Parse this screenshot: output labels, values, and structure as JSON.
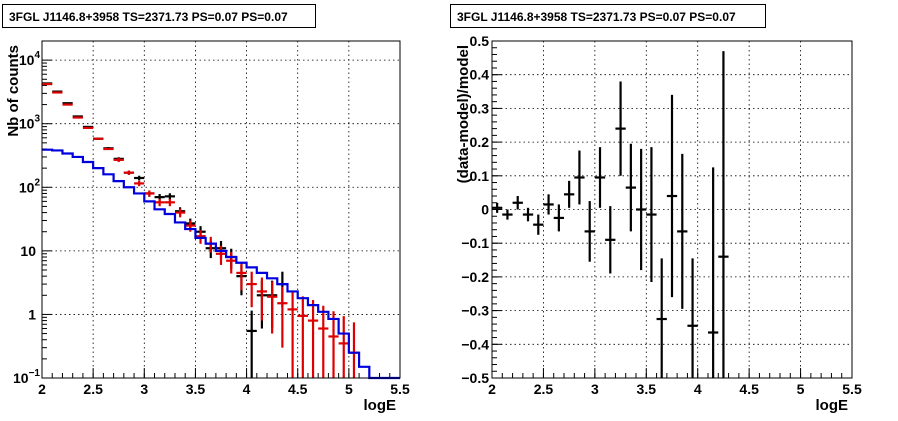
{
  "panels": [
    {
      "title": "3FGL J1146.8+3958 TS=2371.73 PS=0.07 PS=0.07"
    },
    {
      "title": "3FGL J1146.8+3958 TS=2371.73 PS=0.07 PS=0.07"
    }
  ],
  "colors": {
    "data": "#000000",
    "model_points": "#dd0000",
    "model_line": "#0000dd"
  },
  "chart_data": [
    {
      "type": "line",
      "xlabel": "logE",
      "ylabel": "Nb of counts",
      "xlim": [
        2,
        5.5
      ],
      "ylim": [
        0.1,
        20000
      ],
      "yscale": "log",
      "grid": true,
      "xticks": [
        "2",
        "2.5",
        "3",
        "3.5",
        "4",
        "4.5",
        "5",
        "5.5"
      ],
      "yticks": [
        {
          "value": 0.1,
          "base": "10",
          "exp": "−1"
        },
        {
          "value": 1,
          "base": "1",
          "exp": ""
        },
        {
          "value": 10,
          "base": "10",
          "exp": ""
        },
        {
          "value": 100,
          "base": "10",
          "exp": "2"
        },
        {
          "value": 1000,
          "base": "10",
          "exp": "3"
        },
        {
          "value": 10000,
          "base": "10",
          "exp": "4"
        }
      ],
      "series": [
        {
          "kind": "points",
          "color": "#000000",
          "x": [
            2.05,
            2.15,
            2.25,
            2.35,
            2.45,
            2.55,
            2.65,
            2.75,
            2.85,
            2.95,
            3.05,
            3.15,
            3.25,
            3.35,
            3.45,
            3.55,
            3.65,
            3.75,
            3.85,
            3.95,
            4.05,
            4.15,
            4.25,
            4.35
          ],
          "y": [
            4300,
            3200,
            2100,
            1300,
            890,
            580,
            410,
            280,
            170,
            140,
            80,
            70,
            72,
            42,
            27,
            20,
            11,
            11,
            8,
            4,
            0.55,
            2,
            2,
            3
          ],
          "err": [
            65,
            56,
            46,
            36,
            30,
            24,
            20,
            17,
            13,
            12,
            9,
            8.4,
            8.5,
            6.5,
            5.2,
            4.5,
            3.3,
            3.3,
            2.8,
            2,
            0.6,
            1.4,
            1.4,
            1.7
          ]
        },
        {
          "kind": "points",
          "color": "#dd0000",
          "x": [
            2.05,
            2.15,
            2.25,
            2.35,
            2.45,
            2.55,
            2.65,
            2.75,
            2.85,
            2.95,
            3.05,
            3.15,
            3.25,
            3.35,
            3.45,
            3.55,
            3.65,
            3.75,
            3.85,
            3.95,
            4.05,
            4.15,
            4.25,
            4.35,
            4.45,
            4.55,
            4.65,
            4.75,
            4.85,
            4.95,
            5.05
          ],
          "y": [
            4200,
            3100,
            2000,
            1250,
            860,
            580,
            400,
            270,
            170,
            115,
            80,
            58,
            58,
            40,
            25,
            17,
            13,
            9,
            7,
            4.5,
            3,
            2.3,
            1.9,
            1.5,
            1.2,
            0.95,
            0.8,
            0.6,
            0.45,
            0.35,
            0.25
          ],
          "err": [
            0,
            0,
            0,
            0,
            0,
            0,
            0,
            20,
            13,
            11,
            9,
            7.6,
            7.6,
            6.3,
            5,
            4.1,
            3.6,
            3,
            2.6,
            2.1,
            1.7,
            1.5,
            1.4,
            1.2,
            1.1,
            0.97,
            0.89,
            0.77,
            0.67,
            0.59,
            0.5
          ]
        },
        {
          "kind": "step",
          "color": "#0000dd",
          "edges": [
            2.0,
            2.1,
            2.2,
            2.3,
            2.4,
            2.5,
            2.6,
            2.7,
            2.8,
            2.9,
            3.0,
            3.1,
            3.2,
            3.3,
            3.4,
            3.5,
            3.6,
            3.7,
            3.8,
            3.9,
            4.0,
            4.1,
            4.2,
            4.3,
            4.4,
            4.5,
            4.6,
            4.7,
            4.8,
            4.9,
            5.0,
            5.1,
            5.2,
            5.3,
            5.5
          ],
          "values": [
            390,
            380,
            340,
            300,
            250,
            200,
            160,
            125,
            100,
            80,
            60,
            45,
            38,
            28,
            22,
            16,
            13,
            10,
            8,
            6.5,
            5.5,
            4.5,
            3.7,
            3,
            2.3,
            1.8,
            1.4,
            1.1,
            0.85,
            0.5,
            0.25,
            0.15,
            0.1,
            0.1
          ]
        }
      ]
    },
    {
      "type": "scatter",
      "xlabel": "logE",
      "ylabel": "(data-model)/model",
      "xlim": [
        2,
        5.5
      ],
      "ylim": [
        -0.5,
        0.5
      ],
      "grid": true,
      "xticks": [
        "2",
        "2.5",
        "3",
        "3.5",
        "4",
        "4.5",
        "5",
        "5.5"
      ],
      "yticks": [
        "−0.5",
        "−0.4",
        "−0.3",
        "−0.2",
        "−0.1",
        "0",
        "0.1",
        "0.2",
        "0.3",
        "0.4",
        "0.5"
      ],
      "series": [
        {
          "kind": "points",
          "color": "#000000",
          "x": [
            2.05,
            2.15,
            2.25,
            2.35,
            2.45,
            2.55,
            2.65,
            2.75,
            2.85,
            2.95,
            3.05,
            3.15,
            3.25,
            3.35,
            3.45,
            3.55,
            3.65,
            3.75,
            3.85,
            3.95,
            4.15,
            4.25
          ],
          "y": [
            0.005,
            -0.015,
            0.02,
            -0.015,
            -0.045,
            0.015,
            -0.025,
            0.045,
            0.095,
            -0.065,
            0.095,
            -0.09,
            0.24,
            0.065,
            0.0,
            -0.015,
            -0.325,
            0.04,
            -0.065,
            -0.345,
            -0.365,
            -0.14
          ],
          "err": [
            0.015,
            0.015,
            0.02,
            0.02,
            0.03,
            0.03,
            0.04,
            0.04,
            0.08,
            0.09,
            0.09,
            0.1,
            0.14,
            0.13,
            0.18,
            0.2,
            0.18,
            0.3,
            0.23,
            0.2,
            0.49,
            0.61
          ]
        }
      ]
    }
  ]
}
